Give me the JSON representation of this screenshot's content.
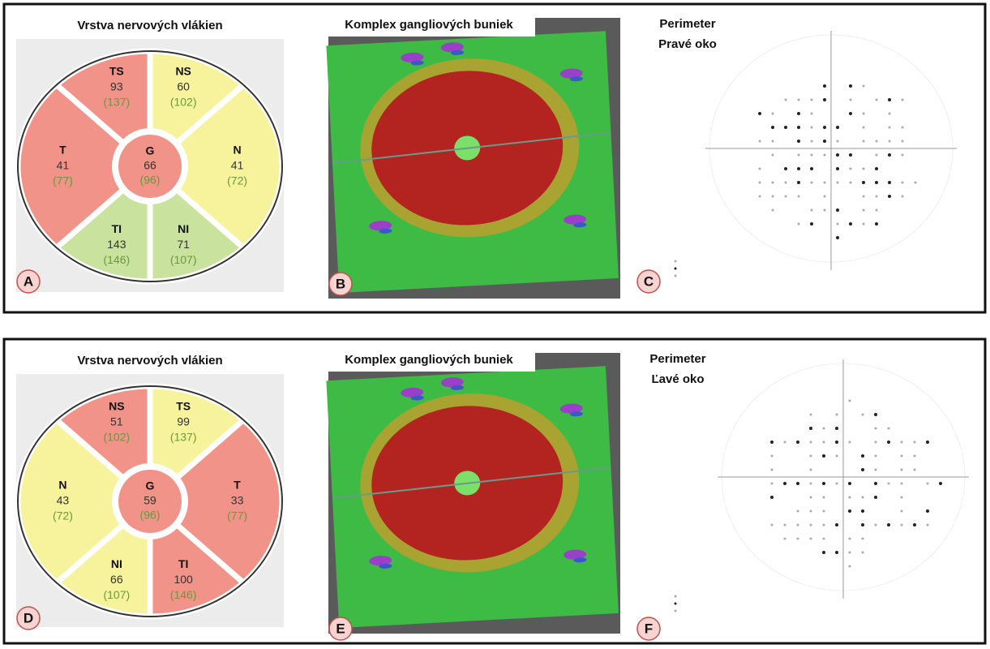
{
  "rows": [
    {
      "rnfl": {
        "title": "Vrstva nervových vlákien",
        "letter": "A",
        "sectors": [
          {
            "label": "NS",
            "value": 60,
            "normal": "(102)",
            "color": "#f7f39c"
          },
          {
            "label": "N",
            "value": 41,
            "normal": "(72)",
            "color": "#f7f39c"
          },
          {
            "label": "NI",
            "value": 71,
            "normal": "(107)",
            "color": "#c9e29e"
          },
          {
            "label": "TI",
            "value": 143,
            "normal": "(146)",
            "color": "#c9e29e"
          },
          {
            "label": "T",
            "value": 41,
            "normal": "(77)",
            "color": "#f19388"
          },
          {
            "label": "TS",
            "value": 93,
            "normal": "(137)",
            "color": "#f19388"
          }
        ],
        "center": {
          "label": "G",
          "value": 66,
          "normal": "(96)",
          "color": "#f19388"
        }
      },
      "gcc": {
        "title": "Komplex gangliových buniek",
        "letter": "B"
      },
      "perimeter": {
        "title": [
          "Perimeter",
          "Pravé oko"
        ],
        "letter": "C"
      }
    },
    {
      "rnfl": {
        "title": "Vrstva nervových vlákien",
        "letter": "D",
        "sectors": [
          {
            "label": "TS",
            "value": 99,
            "normal": "(137)",
            "color": "#f7f39c"
          },
          {
            "label": "T",
            "value": 33,
            "normal": "(77)",
            "color": "#f19388"
          },
          {
            "label": "TI",
            "value": 100,
            "normal": "(146)",
            "color": "#f19388"
          },
          {
            "label": "NI",
            "value": 66,
            "normal": "(107)",
            "color": "#f7f39c"
          },
          {
            "label": "N",
            "value": 43,
            "normal": "(72)",
            "color": "#f7f39c"
          },
          {
            "label": "NS",
            "value": 51,
            "normal": "(102)",
            "color": "#f19388"
          }
        ],
        "center": {
          "label": "G",
          "value": 59,
          "normal": "(96)",
          "color": "#f19388"
        }
      },
      "gcc": {
        "title": "Komplex gangliových buniek",
        "letter": "E"
      },
      "perimeter": {
        "title": [
          "Perimeter",
          "Ľavé oko"
        ],
        "letter": "F"
      }
    }
  ]
}
